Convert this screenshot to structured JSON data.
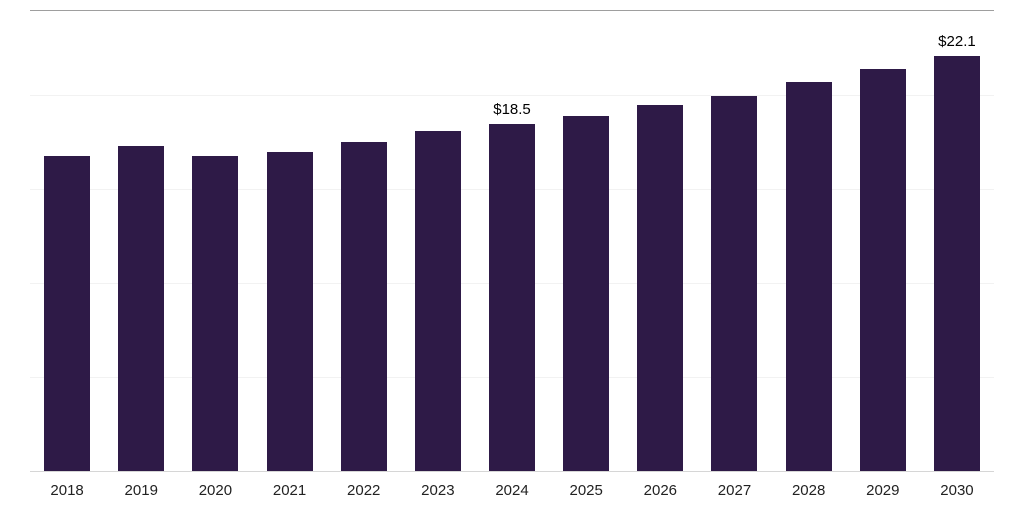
{
  "chart_data": {
    "type": "bar",
    "title": "",
    "xlabel": "",
    "ylabel": "",
    "categories": [
      "2018",
      "2019",
      "2020",
      "2021",
      "2022",
      "2023",
      "2024",
      "2025",
      "2026",
      "2027",
      "2028",
      "2029",
      "2030"
    ],
    "values": [
      16.8,
      17.3,
      16.8,
      17.0,
      17.5,
      18.1,
      18.5,
      18.9,
      19.5,
      20.0,
      20.7,
      21.4,
      22.1
    ],
    "data_labels": [
      "",
      "",
      "",
      "",
      "",
      "",
      "$18.5",
      "",
      "",
      "",
      "",
      "",
      "$22.1"
    ],
    "bar_color": "#2E1A47",
    "ylim": [
      0,
      24.5
    ],
    "gridline_values": [
      5,
      10,
      15,
      20
    ],
    "grid": true,
    "legend": "none"
  },
  "colors": {
    "background": "#ffffff",
    "bar": "#2E1A47",
    "gridline": "#f2f2f2",
    "top_border": "#9e9e9e",
    "baseline": "#d6d6d6",
    "tick_text": "#222222",
    "value_label_text": "#000000"
  }
}
